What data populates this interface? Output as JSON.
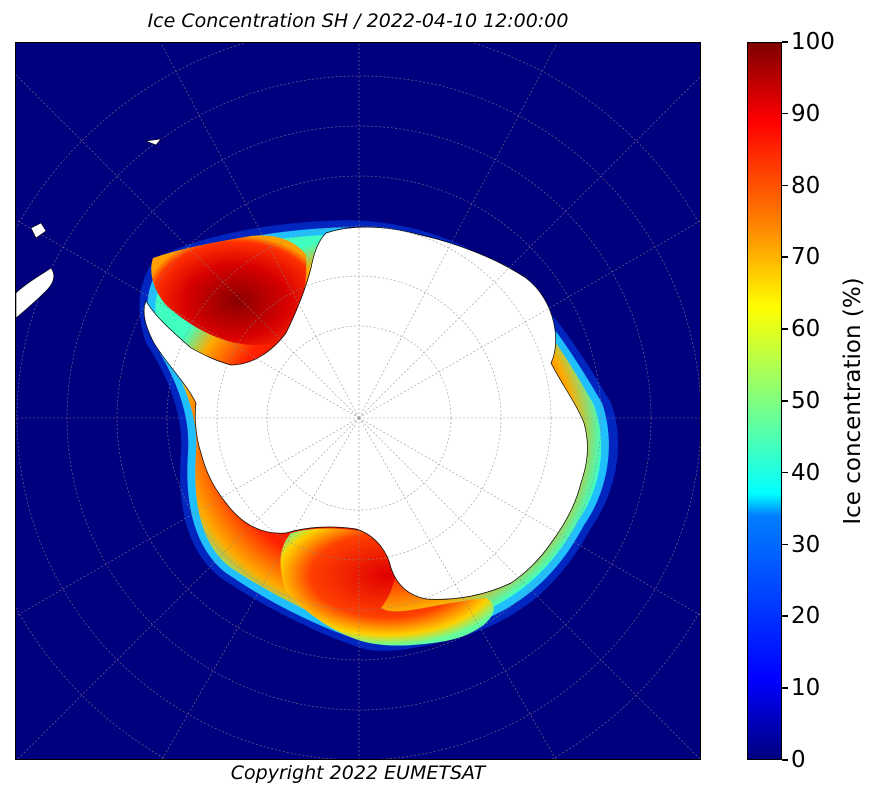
{
  "title": "Ice Concentration SH / 2022-04-10 12:00:00",
  "copyright": "Copyright 2022 EUMETSAT",
  "colorbar": {
    "label": "Ice concentration (%)",
    "ticks": [
      "0",
      "10",
      "20",
      "30",
      "40",
      "50",
      "60",
      "70",
      "80",
      "90",
      "100"
    ],
    "colormap": "jet"
  },
  "colors": {
    "ocean": "#00007f",
    "land": "#ffffff",
    "graticule": "#888888"
  }
}
